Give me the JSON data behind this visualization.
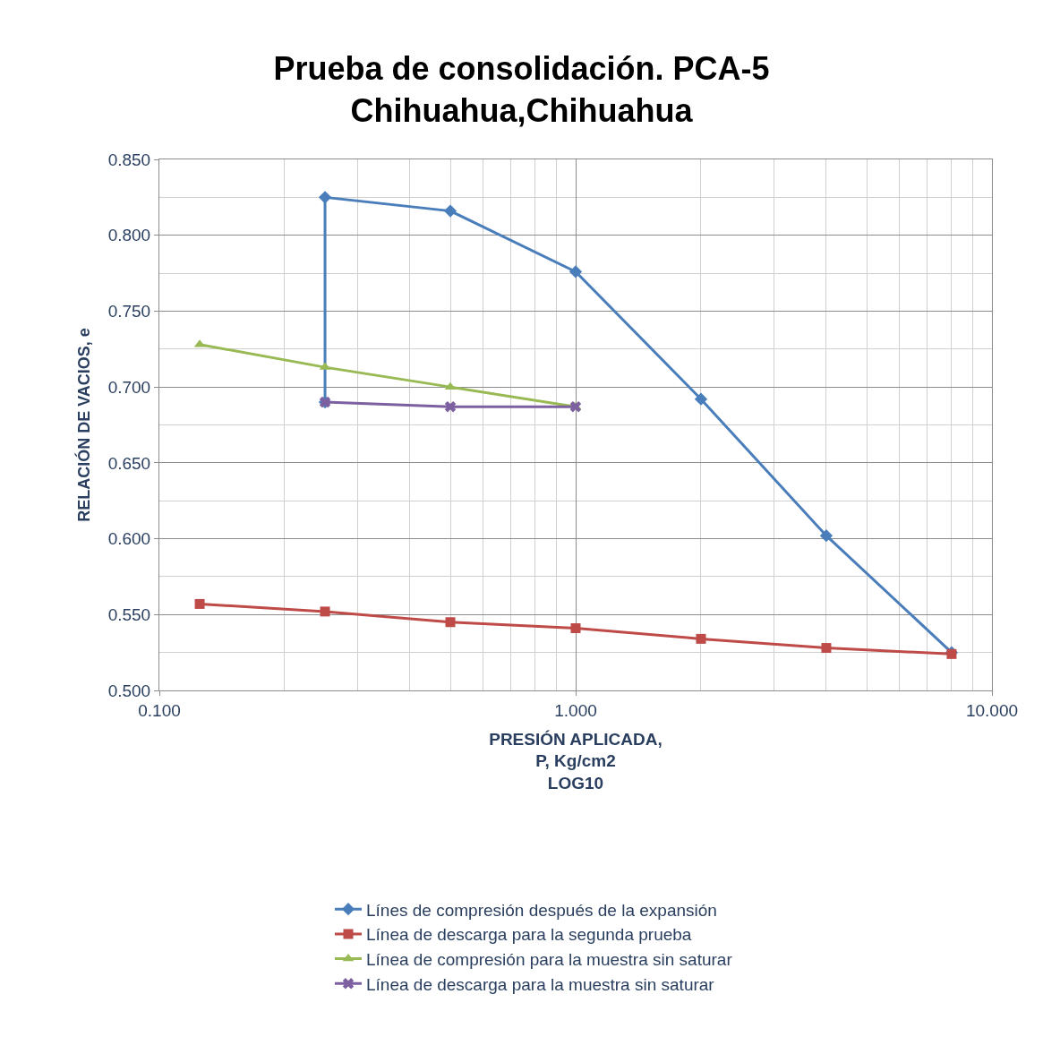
{
  "chart_data": {
    "type": "line",
    "title": "Prueba de consolidación. PCA-5\nChihuahua,Chihuahua",
    "xlabel": "PRESIÓN APLICADA,\nP, Kg/cm2\nLOG10",
    "ylabel": "RELACIÓN DE VACIOS, e",
    "log": "x",
    "xlim": [
      0.1,
      10
    ],
    "xticks": [
      {
        "value": 0.1,
        "label": "0.100"
      },
      {
        "value": 1,
        "label": "1.000"
      },
      {
        "value": 10,
        "label": "10.000"
      }
    ],
    "ylim": [
      0.5,
      0.85
    ],
    "yticks": [
      {
        "value": 0.5,
        "label": "0.500"
      },
      {
        "value": 0.55,
        "label": "0.550"
      },
      {
        "value": 0.6,
        "label": "0.600"
      },
      {
        "value": 0.65,
        "label": "0.650"
      },
      {
        "value": 0.7,
        "label": "0.700"
      },
      {
        "value": 0.75,
        "label": "0.750"
      },
      {
        "value": 0.8,
        "label": "0.800"
      },
      {
        "value": 0.85,
        "label": "0.850"
      }
    ],
    "grid": true,
    "legend": "bottom",
    "series": [
      {
        "name": "Línes de compresión después de la expansión",
        "color": "#4a7ebb",
        "marker": "diamond",
        "x": [
          0.25,
          0.25,
          0.5,
          1,
          2,
          4,
          8
        ],
        "values": [
          0.69,
          0.825,
          0.816,
          0.776,
          0.692,
          0.602,
          0.525
        ]
      },
      {
        "name": "Línea de descarga para la segunda prueba",
        "color": "#be4b48",
        "marker": "square",
        "x": [
          0.125,
          0.25,
          0.5,
          1,
          2,
          4,
          8
        ],
        "values": [
          0.557,
          0.552,
          0.545,
          0.541,
          0.534,
          0.528,
          0.524
        ]
      },
      {
        "name": "Línea de compresión para la muestra sin saturar",
        "color": "#98b954",
        "marker": "triangle",
        "x": [
          0.125,
          0.25,
          0.5,
          1
        ],
        "values": [
          0.728,
          0.713,
          0.7,
          0.687
        ]
      },
      {
        "name": "Línea de descarga para la muestra sin saturar",
        "color": "#7d60a0",
        "marker": "cross",
        "x": [
          0.25,
          0.5,
          1
        ],
        "values": [
          0.69,
          0.687,
          0.687
        ]
      }
    ]
  }
}
